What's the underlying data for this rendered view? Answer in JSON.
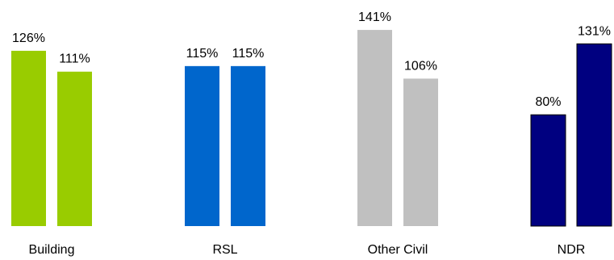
{
  "chart_data": {
    "type": "bar",
    "title": "",
    "xlabel": "",
    "ylabel": "",
    "ylim": [
      0,
      141
    ],
    "grid": false,
    "legend": "none",
    "categories": [
      "Building",
      "RSL",
      "Other Civil",
      "NDR"
    ],
    "groups": [
      {
        "category": "Building",
        "color": "#99CC00",
        "values": [
          126,
          111
        ],
        "labels": [
          "126%",
          "111%"
        ]
      },
      {
        "category": "RSL",
        "color": "#0066CC",
        "values": [
          115,
          115
        ],
        "labels": [
          "115%",
          "115%"
        ]
      },
      {
        "category": "Other Civil",
        "color": "#C0C0C0",
        "values": [
          141,
          106
        ],
        "labels": [
          "141%",
          "106%"
        ]
      },
      {
        "category": "NDR",
        "color": "#000080",
        "values": [
          80,
          131
        ],
        "labels": [
          "80%",
          "131%"
        ]
      }
    ]
  }
}
